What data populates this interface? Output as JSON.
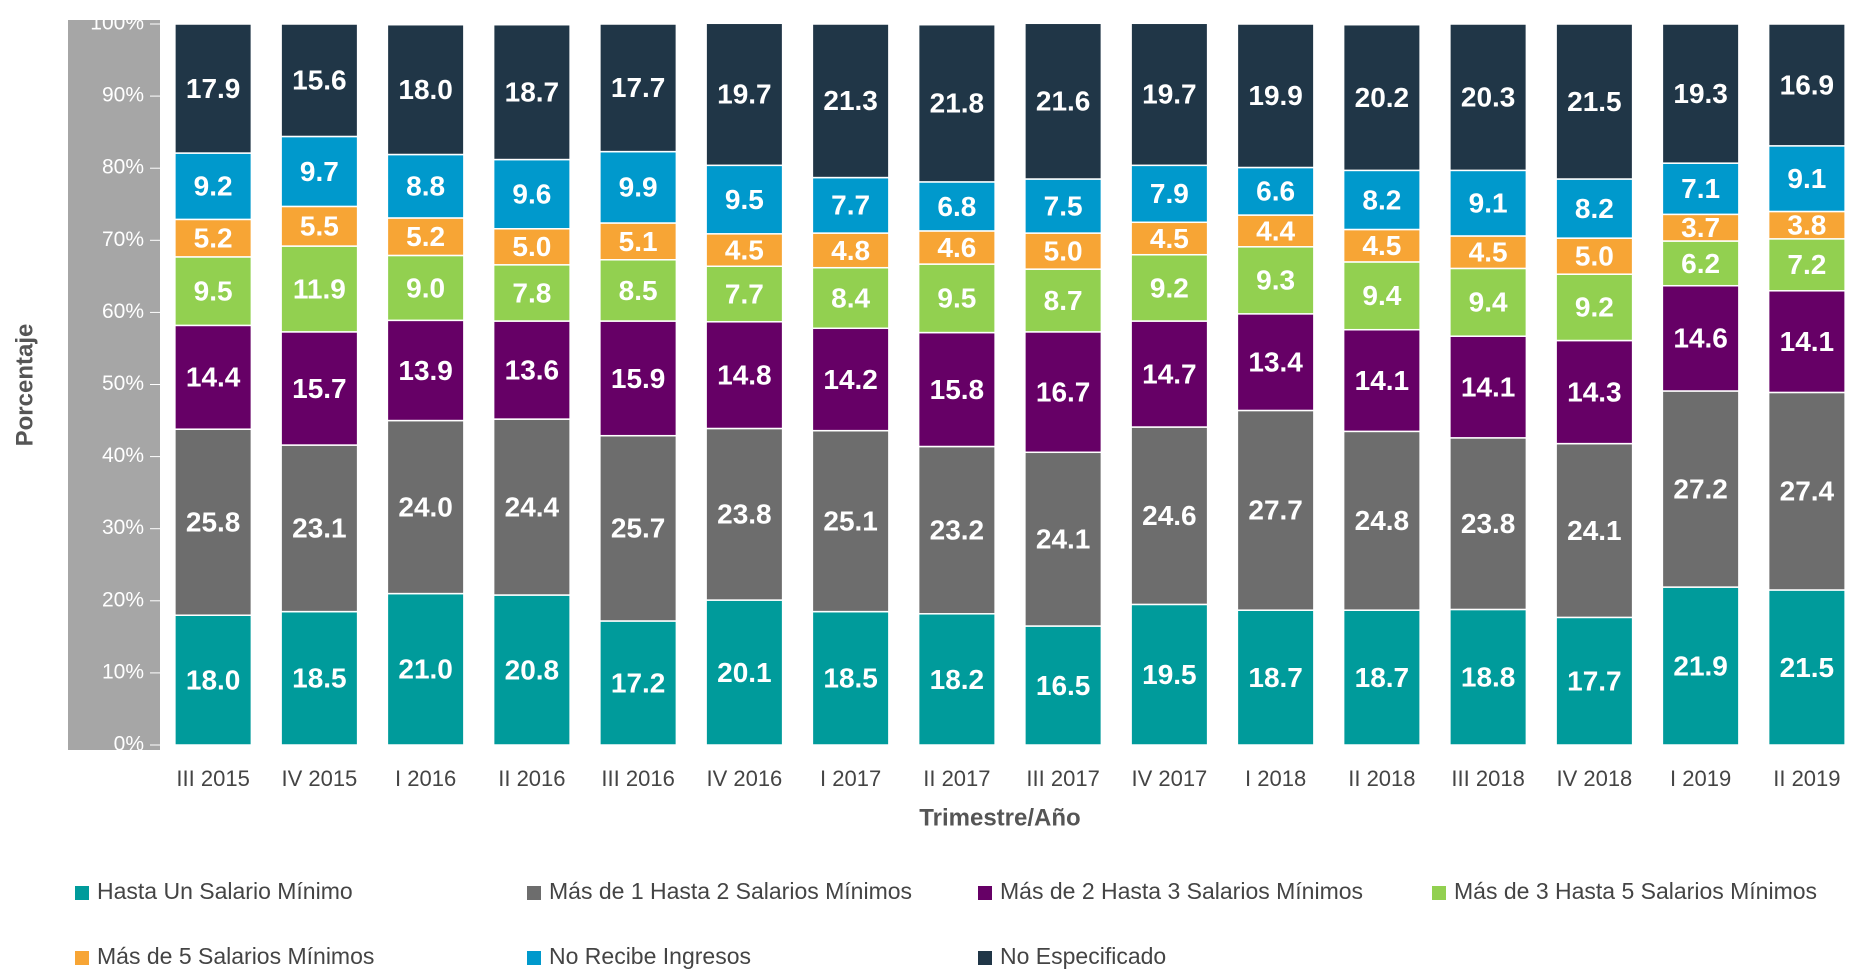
{
  "chart_data": {
    "type": "stacked_bar",
    "x_label": "Trimestre/Año",
    "y_label": "Porcentaje",
    "categories": [
      "III 2015",
      "IV 2015",
      "I 2016",
      "II 2016",
      "III 2016",
      "IV 2016",
      "I 2017",
      "II 2017",
      "III 2017",
      "IV 2017",
      "I 2018",
      "II 2018",
      "III 2018",
      "IV 2018",
      "I 2019",
      "II 2019"
    ],
    "series": [
      {
        "name": "Hasta Un Salario Mínimo",
        "color": "#009b9b",
        "values": [
          18.0,
          18.5,
          21.0,
          20.8,
          17.2,
          20.1,
          18.5,
          18.2,
          16.5,
          19.5,
          18.7,
          18.7,
          18.8,
          17.7,
          21.9,
          21.5
        ],
        "value_labels": [
          "18.0",
          "18.5",
          "21.0",
          "20.8",
          "17.2",
          "20.1",
          "18.5",
          "18.2",
          "16.5",
          "19.5",
          "18.7",
          "18.7",
          "18.8",
          "17.7",
          "21.9",
          "21.5"
        ]
      },
      {
        "name": "Más de 1 Hasta 2 Salarios Mínimos",
        "color": "#6d6d6d",
        "values": [
          25.8,
          23.1,
          24.0,
          24.4,
          25.7,
          23.8,
          25.1,
          23.2,
          24.1,
          24.6,
          27.7,
          24.8,
          23.8,
          24.1,
          27.2,
          27.4
        ],
        "value_labels": [
          "25.8",
          "23.1",
          "24.0",
          "24.4",
          "25.7",
          "23.8",
          "25.1",
          "23.2",
          "24.1",
          "24.6",
          "27.7",
          "24.8",
          "23.8",
          "24.1",
          "27.2",
          "27.4"
        ]
      },
      {
        "name": "Más de 2 Hasta 3 Salarios Mínimos",
        "color": "#660066",
        "values": [
          14.4,
          15.7,
          13.9,
          13.6,
          15.9,
          14.8,
          14.2,
          15.8,
          16.7,
          14.7,
          13.4,
          14.1,
          14.1,
          14.3,
          14.6,
          14.1
        ],
        "value_labels": [
          "14.4",
          "15.7",
          "13.9",
          "13.6",
          "15.9",
          "14.8",
          "14.2",
          "15.8",
          "16.7",
          "14.7",
          "13.4",
          "14.1",
          "14.1",
          "14.3",
          "14.6",
          "14.1"
        ]
      },
      {
        "name": "Más de 3 Hasta 5 Salarios Mínimos",
        "color": "#92d050",
        "values": [
          9.5,
          11.9,
          9.0,
          7.8,
          8.5,
          7.7,
          8.4,
          9.5,
          8.7,
          9.2,
          9.3,
          9.4,
          9.4,
          9.2,
          6.2,
          7.2
        ],
        "value_labels": [
          "9.5",
          "11.9",
          "9.0",
          "7.8",
          "8.5",
          "7.7",
          "8.4",
          "9.5",
          "8.7",
          "9.2",
          "9.3",
          "9.4",
          "9.4",
          "9.2",
          "6.2",
          "7.2"
        ]
      },
      {
        "name": "Más de 5 Salarios Mínimos",
        "color": "#f7a535",
        "values": [
          5.2,
          5.5,
          5.2,
          5.0,
          5.1,
          4.5,
          4.8,
          4.6,
          5.0,
          4.5,
          4.4,
          4.5,
          4.5,
          5.0,
          3.7,
          3.8
        ],
        "value_labels": [
          "5.2",
          "5.5",
          "5.2",
          "5.0",
          "5.1",
          "4.5",
          "4.8",
          "4.6",
          "5.0",
          "4.5",
          "4.4",
          "4.5",
          "4.5",
          "5.0",
          "3.7",
          "3.8"
        ]
      },
      {
        "name": "No Recibe Ingresos",
        "color": "#0099cc",
        "values": [
          9.2,
          9.7,
          8.8,
          9.6,
          9.9,
          9.5,
          7.7,
          6.8,
          7.5,
          7.9,
          6.6,
          8.2,
          9.1,
          8.2,
          7.1,
          9.1
        ],
        "value_labels": [
          "9.2",
          "9.7",
          "8.8",
          "9.6",
          "9.9",
          "9.5",
          "7.7",
          "6.8",
          "7.5",
          "7.9",
          "6.6",
          "8.2",
          "9.1",
          "8.2",
          "7.1",
          "9.1"
        ]
      },
      {
        "name": "No Especificado",
        "color": "#203647",
        "values": [
          17.9,
          15.6,
          18.0,
          18.7,
          17.7,
          19.7,
          21.3,
          21.8,
          21.6,
          19.7,
          19.9,
          20.2,
          20.3,
          21.5,
          19.3,
          16.9
        ],
        "value_labels": [
          "17.9",
          "15.6",
          "18.0",
          "18.7",
          "17.7",
          "19.7",
          "21.3",
          "21.8",
          "21.6",
          "19.7",
          "19.9",
          "20.2",
          "20.3",
          "21.5",
          "19.3",
          "16.9"
        ]
      }
    ],
    "ylim": [
      0,
      100
    ],
    "yticks": [
      {
        "value": 0,
        "label": "0%"
      },
      {
        "value": 10,
        "label": "10%"
      },
      {
        "value": 20,
        "label": "20%"
      },
      {
        "value": 30,
        "label": "30%"
      },
      {
        "value": 40,
        "label": "40%"
      },
      {
        "value": 50,
        "label": "50%"
      },
      {
        "value": 60,
        "label": "60%"
      },
      {
        "value": 70,
        "label": "70%"
      },
      {
        "value": 80,
        "label": "80%"
      },
      {
        "value": 90,
        "label": "90%"
      },
      {
        "value": 100,
        "label": "100%"
      }
    ],
    "legend": "bottom"
  }
}
